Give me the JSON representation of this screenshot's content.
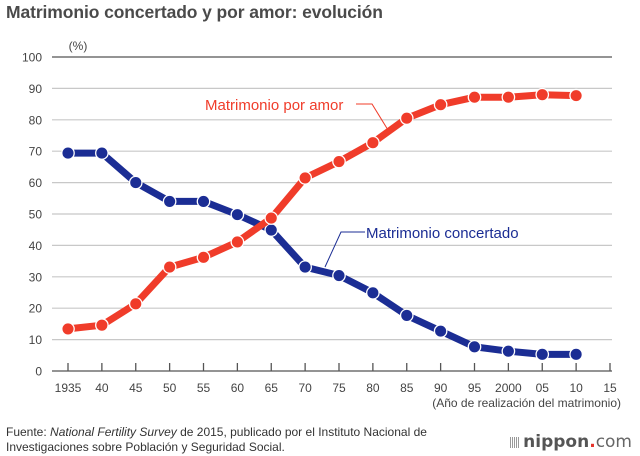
{
  "title": "Matrimonio concertado y por amor: evolución",
  "source": {
    "prefix": "Fuente: ",
    "italic": "National Fertility Survey",
    "rest_line1": " de 2015, publicado por el Instituto Nacional de",
    "line2": "Investigaciones sobre Población y Seguridad Social."
  },
  "logo": {
    "name": "nippon",
    "dot": ".",
    "suffix": "com"
  },
  "chart_data": {
    "type": "line",
    "title": "Matrimonio concertado y por amor: evolución",
    "ylabel": "(%)",
    "xlabel": "(Año de realización del matrimonio)",
    "ylim": [
      0,
      100
    ],
    "yticks": [
      0,
      10,
      20,
      30,
      40,
      50,
      60,
      70,
      80,
      90,
      100
    ],
    "xlim": [
      1935,
      2015
    ],
    "x": [
      1935,
      1940,
      1945,
      1950,
      1955,
      1960,
      1965,
      1970,
      1975,
      1980,
      1985,
      1990,
      1995,
      2000,
      2005,
      2010
    ],
    "xtick_values": [
      1935,
      1940,
      1945,
      1950,
      1955,
      1960,
      1965,
      1970,
      1975,
      1980,
      1985,
      1990,
      1995,
      2000,
      2005,
      2010,
      2015
    ],
    "xtick_labels": [
      "1935",
      "40",
      "45",
      "50",
      "55",
      "60",
      "65",
      "70",
      "75",
      "80",
      "85",
      "90",
      "95",
      "2000",
      "05",
      "10",
      "15"
    ],
    "grid": true,
    "series": [
      {
        "name": "Matrimonio concertado",
        "color": "#1b2d94",
        "values": [
          69.4,
          69.4,
          60.0,
          54.0,
          54.0,
          49.8,
          44.9,
          33.1,
          30.4,
          24.9,
          17.7,
          12.7,
          7.7,
          6.3,
          5.3,
          5.3
        ]
      },
      {
        "name": "Matrimonio por amor",
        "color": "#f03c2a",
        "values": [
          13.4,
          14.6,
          21.4,
          33.1,
          36.2,
          41.1,
          48.7,
          61.5,
          66.7,
          72.7,
          80.5,
          84.8,
          87.2,
          87.2,
          88.0,
          87.7
        ]
      }
    ]
  }
}
